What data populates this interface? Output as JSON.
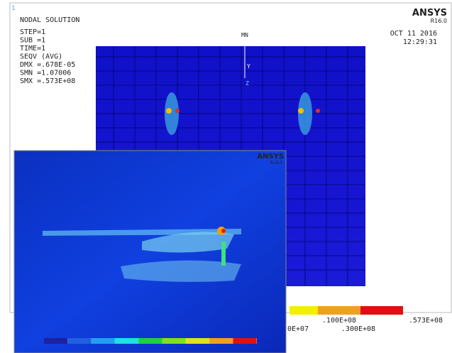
{
  "window": {
    "corner_number": "1"
  },
  "main": {
    "title": "NODAL SOLUTION",
    "info": [
      "STEP=1",
      "SUB =1",
      "TIME=1",
      "SEQV     (AVG)",
      "DMX =.678E-05",
      "SMN =1.07006",
      "SMX =.573E+08"
    ],
    "brand": "ANSYS",
    "version": "R16.0",
    "date": "OCT 11 2016",
    "time": "12:29:31",
    "min_marker": "MN",
    "axis_y": "Y",
    "axis_z": "Z",
    "legend": {
      "lower": [
        "0E+07",
        ".300E+08"
      ],
      "upper": [
        ".100E+08",
        ".573E+08"
      ]
    }
  },
  "inset": {
    "brand": "ANSYS",
    "version": "R16.0"
  }
}
